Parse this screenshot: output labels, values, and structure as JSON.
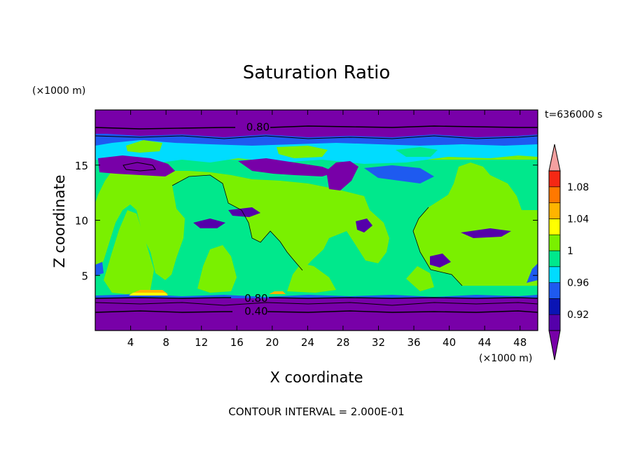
{
  "chart_data": {
    "type": "heatmap",
    "title": "Saturation Ratio",
    "xlabel": "X coordinate",
    "ylabel": "Z coordinate",
    "x_unit": "(×1000 m)",
    "y_unit": "(×1000 m)",
    "time_label": "t=636000 s",
    "footer": "CONTOUR INTERVAL = 2.000E-01",
    "xlim": [
      0,
      50
    ],
    "ylim": [
      0,
      20
    ],
    "x_ticks": [
      4,
      8,
      12,
      16,
      20,
      24,
      28,
      32,
      36,
      40,
      44,
      48
    ],
    "y_ticks": [
      5,
      10,
      15
    ],
    "contour_labels": [
      {
        "text": "0.80",
        "x": 17.2,
        "y": 18.5
      },
      {
        "text": "0.80",
        "x": 17.0,
        "y": 3.0
      },
      {
        "text": "0.40",
        "x": 17.0,
        "y": 1.8
      }
    ],
    "colorbar": {
      "levels": [
        0.9,
        0.92,
        0.94,
        0.96,
        0.98,
        1.0,
        1.02,
        1.04,
        1.06,
        1.08,
        1.1
      ],
      "tick_labels": [
        "0.92",
        "0.96",
        "1",
        "1.04",
        "1.08"
      ],
      "colors": [
        "#5500aa",
        "#0a14b4",
        "#1e5af0",
        "#00dcff",
        "#00e88c",
        "#7af000",
        "#ffff00",
        "#ffb400",
        "#ff7800",
        "#f52814"
      ],
      "under_color": "#7800a8",
      "over_color": "#f5a0a0"
    },
    "regions": {
      "background": "#7af000",
      "bands": [
        {
          "name": "upper-dry-band",
          "ymin": 18.0,
          "ymax": 20.0,
          "color": "#7800a8"
        },
        {
          "name": "lower-dry-band",
          "ymin": 0.0,
          "ymax": 3.2,
          "color": "#7800a8"
        }
      ]
    }
  }
}
